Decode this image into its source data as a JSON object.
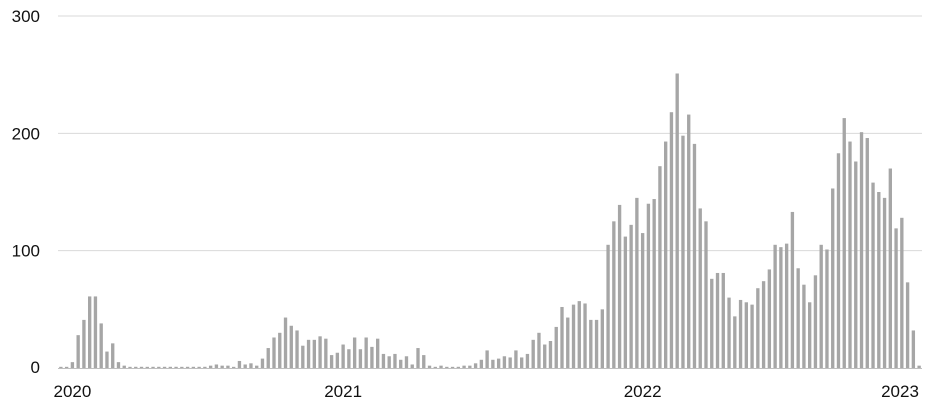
{
  "chart_data": {
    "type": "bar",
    "title": "",
    "xlabel": "",
    "ylabel": "",
    "ylim": [
      0,
      300
    ],
    "yticks": [
      "0",
      "100",
      "200",
      "300"
    ],
    "grid": true,
    "bar_color": "#a6a6a6",
    "grid_color": "#d9d9d9",
    "xtick_labels": [
      {
        "label": "2020",
        "index": 2
      },
      {
        "label": "2021",
        "index": 49
      },
      {
        "label": "2022",
        "index": 101
      },
      {
        "label": "2023",
        "index": 149
      }
    ],
    "values": [
      1,
      1,
      5,
      28,
      41,
      61,
      61,
      38,
      14,
      21,
      5,
      2,
      1,
      0,
      0,
      1,
      0,
      0,
      0,
      0,
      0,
      1,
      0,
      0,
      0,
      0,
      2,
      3,
      2,
      2,
      1,
      6,
      3,
      4,
      2,
      8,
      17,
      26,
      30,
      43,
      36,
      32,
      19,
      24,
      24,
      27,
      25,
      11,
      13,
      20,
      16,
      26,
      16,
      26,
      18,
      25,
      12,
      10,
      12,
      7,
      10,
      3,
      17,
      11,
      2,
      1,
      2,
      1,
      1,
      0,
      2,
      2,
      4,
      7,
      15,
      7,
      8,
      10,
      9,
      15,
      9,
      12,
      24,
      30,
      20,
      23,
      35,
      52,
      43,
      54,
      57,
      55,
      41,
      41,
      50,
      105,
      125,
      139,
      112,
      122,
      145,
      115,
      140,
      144,
      172,
      193,
      218,
      251,
      198,
      216,
      191,
      136,
      125,
      76,
      81,
      81,
      60,
      44,
      58,
      56,
      54,
      68,
      74,
      84,
      105,
      103,
      106,
      133,
      85,
      71,
      56,
      79,
      105,
      101,
      153,
      183,
      213,
      193,
      176,
      201,
      196,
      158,
      150,
      145,
      170,
      119,
      128,
      73,
      32,
      2
    ]
  }
}
